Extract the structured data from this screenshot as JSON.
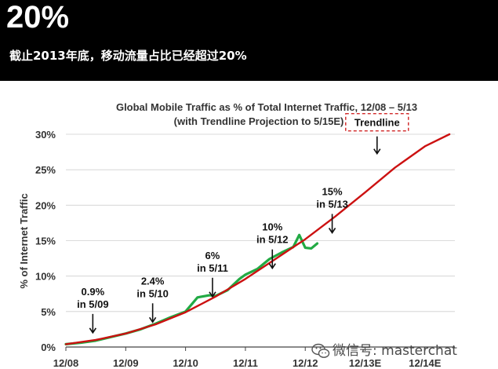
{
  "header": {
    "headline": "20%",
    "subheadline": "截止2013年底，移动流量占比已经超过20%"
  },
  "watermark": {
    "label": "微信号: masterchat",
    "icon": "wechat-icon"
  },
  "chart_data": {
    "type": "line",
    "title": "Global Mobile Traffic as % of Total Internet Traffic, 12/08 – 5/13",
    "subtitle": "(with Trendline Projection to 5/15E)",
    "ylabel": "% of Internet Traffic",
    "xlabel": "",
    "ylim": [
      0,
      30
    ],
    "xlim": [
      0,
      6.5
    ],
    "y_ticks": [
      0,
      5,
      10,
      15,
      20,
      25,
      30
    ],
    "y_tick_labels": [
      "0%",
      "5%",
      "10%",
      "15%",
      "20%",
      "25%",
      "30%"
    ],
    "x_ticks": [
      0,
      1,
      2,
      3,
      4,
      5,
      6
    ],
    "x_tick_labels": [
      "12/08",
      "12/09",
      "12/10",
      "12/11",
      "12/12",
      "12/13E",
      "12/14E"
    ],
    "grid": true,
    "colors": {
      "actual": "#22aa44",
      "trend": "#cc1111",
      "trend_box": "#cc1111",
      "banner": "#000000"
    },
    "series": [
      {
        "kind": "actual",
        "values_x": [
          0.0,
          0.25,
          0.5,
          0.75,
          1.0,
          1.25,
          1.5,
          1.75,
          2.0,
          2.2,
          2.4,
          2.5,
          2.7,
          2.9,
          3.0,
          3.2,
          3.4,
          3.6,
          3.8,
          3.9,
          4.0,
          4.1,
          4.2
        ],
        "values_y": [
          0.4,
          0.6,
          0.9,
          1.4,
          1.9,
          2.5,
          3.3,
          4.2,
          5.0,
          7.0,
          7.3,
          7.2,
          8.0,
          9.6,
          10.2,
          11.0,
          12.4,
          13.3,
          14.1,
          15.8,
          14.0,
          13.9,
          14.6
        ]
      },
      {
        "kind": "trendline",
        "values_x": [
          0.0,
          0.5,
          1.0,
          1.5,
          2.0,
          2.5,
          3.0,
          3.5,
          4.0,
          4.5,
          5.0,
          5.5,
          6.0,
          6.41
        ],
        "values_y": [
          0.4,
          1.0,
          1.9,
          3.2,
          4.9,
          7.1,
          9.6,
          12.4,
          15.2,
          18.4,
          21.8,
          25.3,
          28.3,
          30.0
        ]
      }
    ],
    "annotations": [
      {
        "lines": [
          "0.9%",
          "in 5/09"
        ],
        "x": 0.45,
        "y": 0.9
      },
      {
        "lines": [
          "2.4%",
          "in 5/10"
        ],
        "x": 1.45,
        "y": 2.4
      },
      {
        "lines": [
          "6%",
          "in 5/11"
        ],
        "x": 2.45,
        "y": 6
      },
      {
        "lines": [
          "10%",
          "in 5/12"
        ],
        "x": 3.45,
        "y": 10
      },
      {
        "lines": [
          "15%",
          "in 5/13"
        ],
        "x": 4.45,
        "y": 15
      }
    ],
    "trend_label": {
      "text": "Trendline",
      "x": 5.2,
      "y": 23.5
    }
  }
}
